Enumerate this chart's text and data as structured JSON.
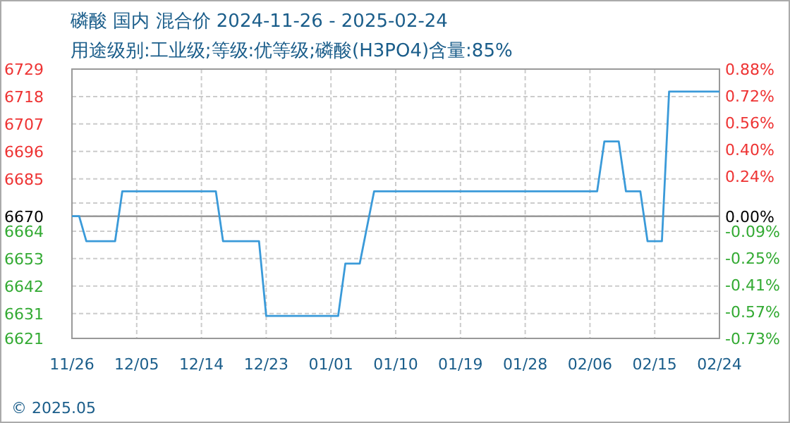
{
  "chart_data": {
    "type": "line",
    "title": "磷酸 国内 混合价 2024-11-26 - 2025-02-24",
    "subtitle": "用途级别:工业级;等级:优等级;磷酸(H3PO4)含量:85%",
    "annotations": [
      "© 2025.05"
    ],
    "x": [
      "2024-11-26",
      "2024-11-27",
      "2024-11-28",
      "2024-12-02",
      "2024-12-03",
      "2024-12-16",
      "2024-12-17",
      "2024-12-22",
      "2024-12-23",
      "2025-01-02",
      "2025-01-03",
      "2025-01-05",
      "2025-01-07",
      "2025-02-07",
      "2025-02-08",
      "2025-02-10",
      "2025-02-11",
      "2025-02-13",
      "2025-02-14",
      "2025-02-16",
      "2025-02-17",
      "2025-02-24"
    ],
    "series": [
      {
        "color": "#3a9ad9",
        "values": [
          6670,
          6670,
          6660,
          6660,
          6680,
          6680,
          6660,
          6660,
          6630,
          6630,
          6651,
          6651,
          6680,
          6680,
          6700,
          6700,
          6680,
          6680,
          6660,
          6660,
          6720,
          6720
        ]
      }
    ],
    "xlim": [
      "2024-11-26",
      "2025-02-24"
    ],
    "xticks": [
      {
        "value": "2024-11-26",
        "label": "11/26"
      },
      {
        "value": "2024-12-05",
        "label": "12/05"
      },
      {
        "value": "2024-12-14",
        "label": "12/14"
      },
      {
        "value": "2024-12-23",
        "label": "12/23"
      },
      {
        "value": "2025-01-01",
        "label": "01/01"
      },
      {
        "value": "2025-01-10",
        "label": "01/10"
      },
      {
        "value": "2025-01-19",
        "label": "01/19"
      },
      {
        "value": "2025-01-28",
        "label": "01/28"
      },
      {
        "value": "2025-02-06",
        "label": "02/06"
      },
      {
        "value": "2025-02-15",
        "label": "02/15"
      },
      {
        "value": "2025-02-24",
        "label": "02/24"
      }
    ],
    "ylim": [
      6621,
      6729
    ],
    "yticks": [
      6729,
      6718,
      6707,
      6696,
      6685,
      {
        "value": 6675.3,
        "label": null
      },
      6670,
      6664,
      6653,
      6642,
      6631,
      6621
    ],
    "y2lim": [
      -0.73,
      0.88
    ],
    "y2ticks": [
      {
        "value": 0.88,
        "label": "0.88%"
      },
      {
        "value": 0.72,
        "label": "0.72%"
      },
      {
        "value": 0.56,
        "label": "0.56%"
      },
      {
        "value": 0.4,
        "label": "0.40%"
      },
      {
        "value": 0.24,
        "label": "0.24%"
      },
      {
        "value": 0.0,
        "label": "0.00%"
      },
      {
        "value": -0.09,
        "label": "-0.09%"
      },
      {
        "value": -0.25,
        "label": "-0.25%"
      },
      {
        "value": -0.41,
        "label": "-0.41%"
      },
      {
        "value": -0.57,
        "label": "-0.57%"
      },
      {
        "value": -0.73,
        "label": "-0.73%"
      }
    ],
    "ref_lines": [
      {
        "axis": "y",
        "value": 6670,
        "color": "#999999"
      }
    ],
    "grid": true,
    "line_style": "solid",
    "marker": "none"
  }
}
